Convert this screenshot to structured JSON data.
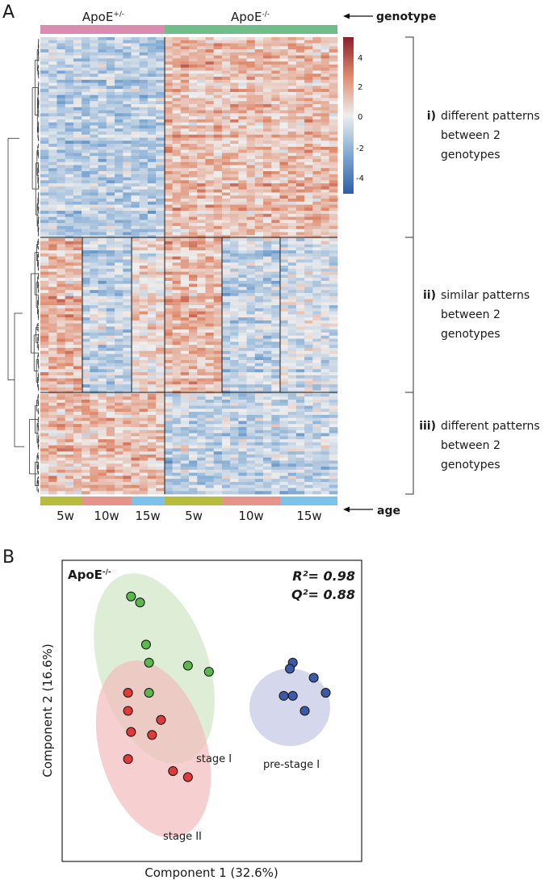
{
  "panel_a": {
    "letter": "A",
    "genotype_groups": [
      {
        "base": "ApoE",
        "sup": "+/-",
        "color": "#dc8bb0"
      },
      {
        "base": "ApoE",
        "sup": "-/-",
        "color": "#6fbe8a"
      }
    ],
    "genotype_label": "genotype",
    "age_label": "age",
    "age_colors": {
      "5w": "#b8bc3d",
      "10w": "#e6938b",
      "15w": "#7bc3ea"
    },
    "age_groups": [
      "5w",
      "10w",
      "15w",
      "5w",
      "10w",
      "15w"
    ],
    "colorbar": {
      "ticks": [
        "4",
        "2",
        "0",
        "-2",
        "-4"
      ],
      "min": -5,
      "max": 5,
      "low_color": "#2f5fa8",
      "mid_color": "#eeeeee",
      "high_color": "#8e1d2b"
    },
    "clusters": [
      {
        "roman": "i)",
        "lines": [
          "different patterns",
          "between 2",
          "genotypes"
        ]
      },
      {
        "roman": "ii)",
        "lines": [
          "similar patterns",
          "between 2",
          "genotypes"
        ]
      },
      {
        "roman": "iii)",
        "lines": [
          "different patterns",
          "between 2",
          "genotypes"
        ]
      }
    ]
  },
  "panel_b": {
    "letter": "B",
    "title_base": "ApoE",
    "title_sup": "-/-",
    "r2": "R²= 0.98",
    "q2": "Q²= 0.88"
  },
  "chart_data": [
    {
      "type": "heatmap",
      "title": "",
      "columns_by_genotype": [
        "ApoE+/-",
        "ApoE-/-"
      ],
      "column_ages": [
        "5w",
        "10w",
        "15w",
        "5w",
        "10w",
        "15w"
      ],
      "value_range": [
        -5,
        5
      ],
      "row_clusters": [
        {
          "name": "i) different patterns between 2 genotypes",
          "pattern": {
            "ApoE+/-": "low (blue)",
            "ApoE-/-": "high (red)"
          }
        },
        {
          "name": "ii) similar patterns between 2 genotypes",
          "pattern": {
            "5w": "high",
            "10w": "low",
            "15w": "mixed"
          }
        },
        {
          "name": "iii) different patterns between 2 genotypes",
          "pattern": {
            "ApoE+/-": "high (red)",
            "ApoE-/-": "low (blue)"
          }
        }
      ]
    },
    {
      "type": "scatter",
      "title": "ApoE-/-",
      "xlabel": "Component 1 (32.6%)",
      "ylabel": "Component 2 (16.6%)",
      "xlim": [
        0,
        10
      ],
      "ylim": [
        0,
        10
      ],
      "grid": false,
      "series": [
        {
          "name": "stage I",
          "color": "#5cb84e",
          "ellipse_color": "#cfe6c4",
          "points": [
            [
              2.3,
              8.8
            ],
            [
              2.6,
              8.6
            ],
            [
              2.8,
              7.2
            ],
            [
              2.9,
              6.6
            ],
            [
              4.2,
              6.5
            ],
            [
              4.9,
              6.3
            ],
            [
              2.9,
              5.6
            ]
          ]
        },
        {
          "name": "stage II",
          "color": "#e03b3b",
          "ellipse_color": "#f2bcbc",
          "points": [
            [
              2.2,
              5.6
            ],
            [
              2.2,
              5.0
            ],
            [
              3.3,
              4.7
            ],
            [
              2.3,
              4.3
            ],
            [
              3.0,
              4.2
            ],
            [
              2.2,
              3.4
            ],
            [
              3.7,
              3.0
            ],
            [
              4.2,
              2.8
            ]
          ]
        },
        {
          "name": "pre-stage I",
          "color": "#3d5aa8",
          "ellipse_color": "#c3c8e6",
          "points": [
            [
              7.7,
              6.6
            ],
            [
              7.6,
              6.4
            ],
            [
              8.4,
              6.1
            ],
            [
              7.4,
              5.5
            ],
            [
              7.7,
              5.5
            ],
            [
              8.8,
              5.6
            ],
            [
              8.1,
              5.0
            ]
          ]
        }
      ],
      "annotations": [
        "R²= 0.98",
        "Q²= 0.88"
      ]
    }
  ]
}
